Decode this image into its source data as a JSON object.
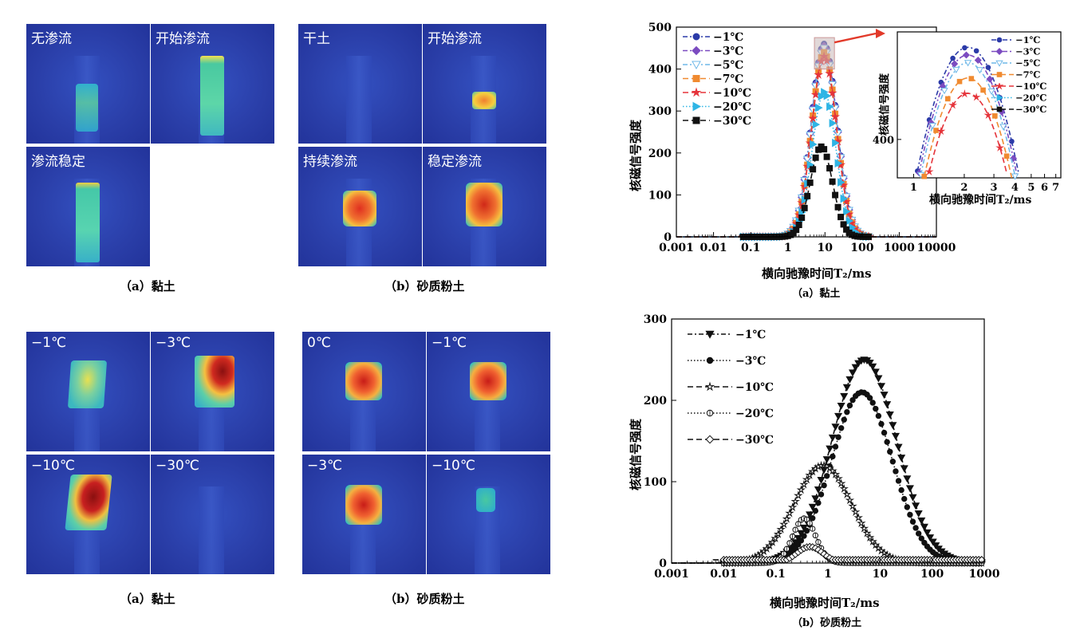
{
  "figures": {
    "top_clay": {
      "tiles": [
        "无渗流",
        "开始渗流",
        "渗流稳定"
      ],
      "caption": "（a）黏土"
    },
    "top_sandy": {
      "tiles": [
        "干土",
        "开始渗流",
        "持续渗流",
        "稳定渗流"
      ],
      "caption": "（b）砂质粉土"
    },
    "bottom_clay": {
      "tiles": [
        "−1℃",
        "−3℃",
        "−10℃",
        "−30℃"
      ],
      "caption": "（a）黏土"
    },
    "bottom_sandy": {
      "tiles": [
        "0℃",
        "−1℃",
        "−3℃",
        "−10℃"
      ],
      "caption": "（b）砂质粉土"
    }
  },
  "chart_data": [
    {
      "type": "line",
      "id": "clay_nmr",
      "title": "",
      "caption": "（a）黏土",
      "xlabel": "横向驰豫时间T₂/ms",
      "ylabel": "核磁信号强度",
      "xscale": "log",
      "xlim": [
        0.001,
        10000
      ],
      "ylim": [
        0,
        500
      ],
      "xticks": [
        "0.001",
        "0.01",
        "0.1",
        "1",
        "10",
        "100",
        "1000",
        "10000"
      ],
      "yticks": [
        "0",
        "100",
        "200",
        "300",
        "400",
        "500"
      ],
      "legend_position": "top-left",
      "series": [
        {
          "name": "−1℃",
          "color": "#2b3aa8",
          "marker": "circle",
          "dash": "dashdot",
          "peak": 460,
          "peak_t2": 9.5
        },
        {
          "name": "−3℃",
          "color": "#7b4bc0",
          "marker": "diamond",
          "dash": "dashdot",
          "peak": 455,
          "peak_t2": 9.5
        },
        {
          "name": "−5℃",
          "color": "#6fb8e8",
          "marker": "triangle-down-open",
          "dash": "dashdot",
          "peak": 450,
          "peak_t2": 9.5
        },
        {
          "name": "−7℃",
          "color": "#f08a30",
          "marker": "square-half",
          "dash": "dash",
          "peak": 440,
          "peak_t2": 9.5
        },
        {
          "name": "−10℃",
          "color": "#e5333a",
          "marker": "star",
          "dash": "dash",
          "peak": 430,
          "peak_t2": 9.5
        },
        {
          "name": "−20℃",
          "color": "#2fb5e5",
          "marker": "triangle-right",
          "dash": "dot",
          "peak": 345,
          "peak_t2": 9.5
        },
        {
          "name": "−30℃",
          "color": "#111111",
          "marker": "square",
          "dash": "dash",
          "peak": 215,
          "peak_t2": 8
        }
      ],
      "inset": {
        "xlabel": "横向驰豫时间T₂/ms",
        "ylabel": "核磁信号强度",
        "xticks": [
          "1",
          "2",
          "3",
          "4",
          "5",
          "6",
          "7"
        ],
        "ytick": "400",
        "legend": [
          "−1℃",
          "−3℃",
          "−5℃",
          "−7℃",
          "−10℃",
          "−20℃",
          "−30℃"
        ]
      }
    },
    {
      "type": "line",
      "id": "sandy_nmr",
      "title": "",
      "caption": "（b）砂质粉土",
      "xlabel": "横向驰豫时间T₂/ms",
      "ylabel": "核磁信号强度",
      "xscale": "log",
      "xlim": [
        0.001,
        1000
      ],
      "ylim": [
        0,
        300
      ],
      "xticks": [
        "0.001",
        "0.01",
        "0.1",
        "1",
        "10",
        "100",
        "1000"
      ],
      "yticks": [
        "0",
        "100",
        "200",
        "300"
      ],
      "legend_position": "top-left",
      "series": [
        {
          "name": "−1℃",
          "marker": "triangle-down",
          "dash": "dashdot",
          "peak": 250,
          "peak_t2": 5
        },
        {
          "name": "−3℃",
          "marker": "circle",
          "dash": "dot",
          "peak": 210,
          "peak_t2": 4.5
        },
        {
          "name": "−10℃",
          "marker": "star-open",
          "dash": "dash",
          "peak": 120,
          "peak_t2": 0.8
        },
        {
          "name": "−20℃",
          "marker": "circle-cross-open",
          "dash": "dot",
          "peak": 55,
          "peak_t2": 0.35
        },
        {
          "name": "−30℃",
          "marker": "diamond-open",
          "dash": "dash",
          "peak": 20,
          "peak_t2": 0.45
        }
      ]
    }
  ]
}
